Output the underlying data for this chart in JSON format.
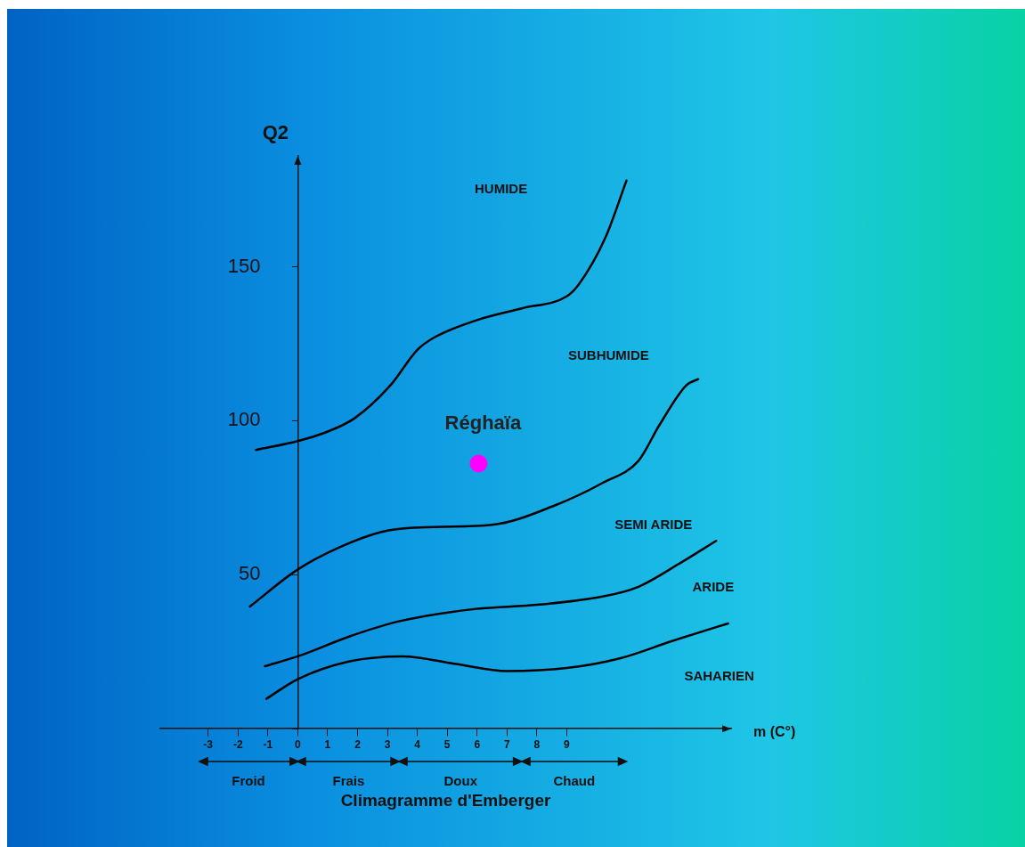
{
  "chart_data": {
    "type": "line",
    "title": "Climagramme d'Emberger",
    "xlabel": "m (C°)",
    "ylabel": "Q2",
    "xlim": [
      -4.6,
      14.5
    ],
    "ylim": [
      0,
      186
    ],
    "xticks": [
      -3,
      -2,
      -1,
      0,
      1,
      2,
      3,
      4,
      5,
      6,
      7,
      8,
      9
    ],
    "yticks": [
      {
        "value": 0,
        "label": null
      },
      50,
      100,
      150
    ],
    "grid": false,
    "legend": false,
    "marker": "none",
    "line_style": "solid",
    "series": [
      {
        "color": "#000000",
        "x": [
          -1.4,
          0,
          0.93,
          1.9,
          3.1,
          4.0,
          4.56,
          6.0,
          7.5,
          9.0,
          9.4,
          10.3,
          11.0
        ],
        "values": [
          90.5,
          93.4,
          96.2,
          100.8,
          111.5,
          123,
          127,
          132.7,
          136.5,
          140.4,
          144.2,
          159.6,
          178
        ]
      },
      {
        "color": "#000000",
        "x": [
          -1.6,
          0,
          1.42,
          2.8,
          3.85,
          6.5,
          8.6,
          10.2,
          11.4,
          12.1,
          13.0,
          13.4
        ],
        "values": [
          39.7,
          51.7,
          59,
          63.9,
          65.3,
          66.2,
          72.5,
          79.8,
          87,
          98.6,
          111.5,
          113.5
        ]
      },
      {
        "color": "#000000",
        "x": [
          -1.1,
          0,
          1.74,
          3.35,
          5.77,
          8.1,
          10.2,
          11.4,
          12.8,
          14.0
        ],
        "values": [
          20.3,
          23.5,
          30,
          34.8,
          38.7,
          40.3,
          42.9,
          46.1,
          53.8,
          61
        ]
      },
      {
        "color": "#000000",
        "x": [
          -1.05,
          0,
          1.74,
          3.5,
          5.3,
          7.0,
          9.0,
          10.8,
          12.5,
          14.4
        ],
        "values": [
          9.7,
          16.1,
          21.9,
          23.5,
          21,
          18.7,
          19.7,
          22.9,
          28.4,
          34.2
        ]
      },
      {
        "type": "scatter",
        "marker": "circle",
        "name": "Réghaïa",
        "color": "#ff00ff",
        "x": [
          6.05
        ],
        "values": [
          86.1
        ]
      }
    ],
    "annotations": [
      "HUMIDE",
      "SUBHUMIDE",
      "SEMI ARIDE",
      "ARIDE",
      "SAHARIEN",
      "Froid",
      "Frais",
      "Doux",
      "Chaud"
    ]
  }
}
